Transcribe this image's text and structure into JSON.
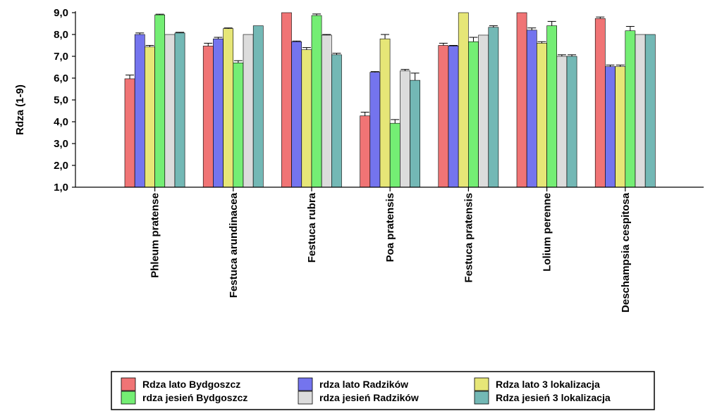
{
  "chart_data": {
    "type": "bar",
    "ylabel": "Rdza (1-9)",
    "xlabel": "",
    "ylim": [
      1,
      9
    ],
    "yticks": [
      "1,0",
      "2,0",
      "3,0",
      "4,0",
      "5,0",
      "6,0",
      "7,0",
      "8,0",
      "9,0"
    ],
    "grid": false,
    "legend_position": "bottom",
    "categories": [
      "Phleum pratense",
      "Festuca arundinacea",
      "Festuca rubra",
      "Poa pratensis",
      "Festuca pratensis",
      "Lolium perenne",
      "Deschampsia cespitosa"
    ],
    "series": [
      {
        "name": "Rdza lato Bydgoszcz",
        "color": "#f07475",
        "values": [
          5.97,
          7.47,
          9.0,
          4.27,
          7.5,
          9.0,
          8.73
        ],
        "errors": [
          0.17,
          0.13,
          0.0,
          0.17,
          0.1,
          0.0,
          0.07
        ]
      },
      {
        "name": "rdza lato Radzików",
        "color": "#7474ee",
        "values": [
          8.0,
          7.8,
          7.67,
          6.27,
          7.47,
          8.2,
          6.53
        ],
        "errors": [
          0.07,
          0.07,
          0.03,
          0.03,
          0.03,
          0.1,
          0.07
        ]
      },
      {
        "name": "Rdza lato 3 lokalizacja",
        "color": "#e6e677",
        "values": [
          7.43,
          8.27,
          7.3,
          7.8,
          9.0,
          7.6,
          6.53
        ],
        "errors": [
          0.07,
          0.03,
          0.1,
          0.2,
          0.0,
          0.07,
          0.07
        ]
      },
      {
        "name": "rdza jesień Bydgoszcz",
        "color": "#74ee74",
        "values": [
          8.9,
          6.7,
          8.87,
          3.93,
          7.67,
          8.4,
          8.17
        ],
        "errors": [
          0.03,
          0.1,
          0.07,
          0.17,
          0.2,
          0.2,
          0.2
        ]
      },
      {
        "name": "rdza jesień Radzików",
        "color": "#dcdcdc",
        "values": [
          8.0,
          8.0,
          7.97,
          6.33,
          7.97,
          7.0,
          8.0
        ],
        "errors": [
          0.0,
          0.0,
          0.03,
          0.07,
          0.0,
          0.07,
          0.0
        ]
      },
      {
        "name": "Rdza jesień 3 lokalizacja",
        "color": "#73b8b5",
        "values": [
          8.07,
          8.4,
          7.07,
          5.9,
          8.33,
          7.0,
          8.0
        ],
        "errors": [
          0.03,
          0.0,
          0.07,
          0.33,
          0.07,
          0.07,
          0.0
        ]
      }
    ]
  }
}
